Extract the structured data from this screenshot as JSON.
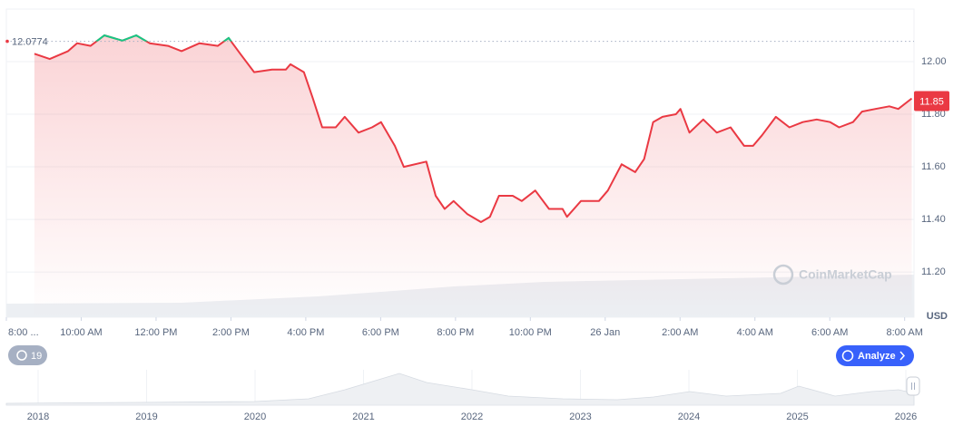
{
  "chart_data": {
    "type": "line",
    "x": [
      0.75,
      1.16,
      1.65,
      1.89,
      2.25,
      2.62,
      3.1,
      3.47,
      3.83,
      4.32,
      4.68,
      5.16,
      5.65,
      5.94,
      6.25,
      6.62,
      7.1,
      7.47,
      7.59,
      7.95,
      8.19,
      8.44,
      8.8,
      9.04,
      9.41,
      9.77,
      10.01,
      10.38,
      10.62,
      11.22,
      11.47,
      11.71,
      11.95,
      12.32,
      12.68,
      12.92,
      13.16,
      13.53,
      13.77,
      14.13,
      14.5,
      14.86,
      14.98,
      15.35,
      15.83,
      16.07,
      16.44,
      16.8,
      17.04,
      17.28,
      17.53,
      17.89,
      18.01,
      18.25,
      18.62,
      18.98,
      19.35,
      19.71,
      19.95,
      20.19,
      20.56,
      20.92,
      21.28,
      21.65,
      22.01,
      22.25,
      22.62,
      22.86,
      23.22,
      23.59,
      23.83,
      24.19
    ],
    "values": [
      12.03,
      12.01,
      12.04,
      12.07,
      12.06,
      12.1,
      12.08,
      12.1,
      12.07,
      12.06,
      12.04,
      12.07,
      12.06,
      12.09,
      12.03,
      11.96,
      11.97,
      11.97,
      11.99,
      11.96,
      11.86,
      11.75,
      11.75,
      11.79,
      11.73,
      11.75,
      11.77,
      11.68,
      11.6,
      11.62,
      11.49,
      11.44,
      11.47,
      11.42,
      11.39,
      11.41,
      11.49,
      11.49,
      11.47,
      11.51,
      11.44,
      11.44,
      11.41,
      11.47,
      11.47,
      11.51,
      11.61,
      11.58,
      11.63,
      11.77,
      11.79,
      11.8,
      11.82,
      11.73,
      11.78,
      11.73,
      11.75,
      11.68,
      11.68,
      11.72,
      11.79,
      11.75,
      11.77,
      11.78,
      11.77,
      11.75,
      11.77,
      11.81,
      11.82,
      11.83,
      11.82,
      11.86
    ],
    "color": "#ea3943",
    "color_above_reference": "#16c784",
    "reference_price": 12.0774,
    "current_price": 11.85,
    "unit": "USD",
    "xlim": [
      0,
      24.25
    ],
    "xticks": [
      {
        "value": 0,
        "label": "8:00 ..."
      },
      {
        "value": 2,
        "label": "10:00 AM"
      },
      {
        "value": 4,
        "label": "12:00 PM"
      },
      {
        "value": 6,
        "label": "2:00 PM"
      },
      {
        "value": 8,
        "label": "4:00 PM"
      },
      {
        "value": 10,
        "label": "6:00 PM"
      },
      {
        "value": 12,
        "label": "8:00 PM"
      },
      {
        "value": 14,
        "label": "10:00 PM"
      },
      {
        "value": 16,
        "label": "26 Jan"
      },
      {
        "value": 18,
        "label": "2:00 AM"
      },
      {
        "value": 20,
        "label": "4:00 AM"
      },
      {
        "value": 22,
        "label": "6:00 AM"
      },
      {
        "value": 24,
        "label": "8:00 AM"
      }
    ],
    "ylim": [
      11.028,
      12.2
    ],
    "yticks": [
      {
        "value": 11.2,
        "label": "11.20"
      },
      {
        "value": 11.4,
        "label": "11.40"
      },
      {
        "value": 11.6,
        "label": "11.60"
      },
      {
        "value": 11.8,
        "label": "11.80"
      },
      {
        "value": 12,
        "label": "12.00"
      }
    ],
    "grid": true
  },
  "ui": {
    "badge": "19",
    "button": "Analyze",
    "watermark": "CoinMarketCap",
    "navigator_years": [
      "2018",
      "2019",
      "2020",
      "2021",
      "2022",
      "2023",
      "2024",
      "2025",
      "2026"
    ]
  }
}
